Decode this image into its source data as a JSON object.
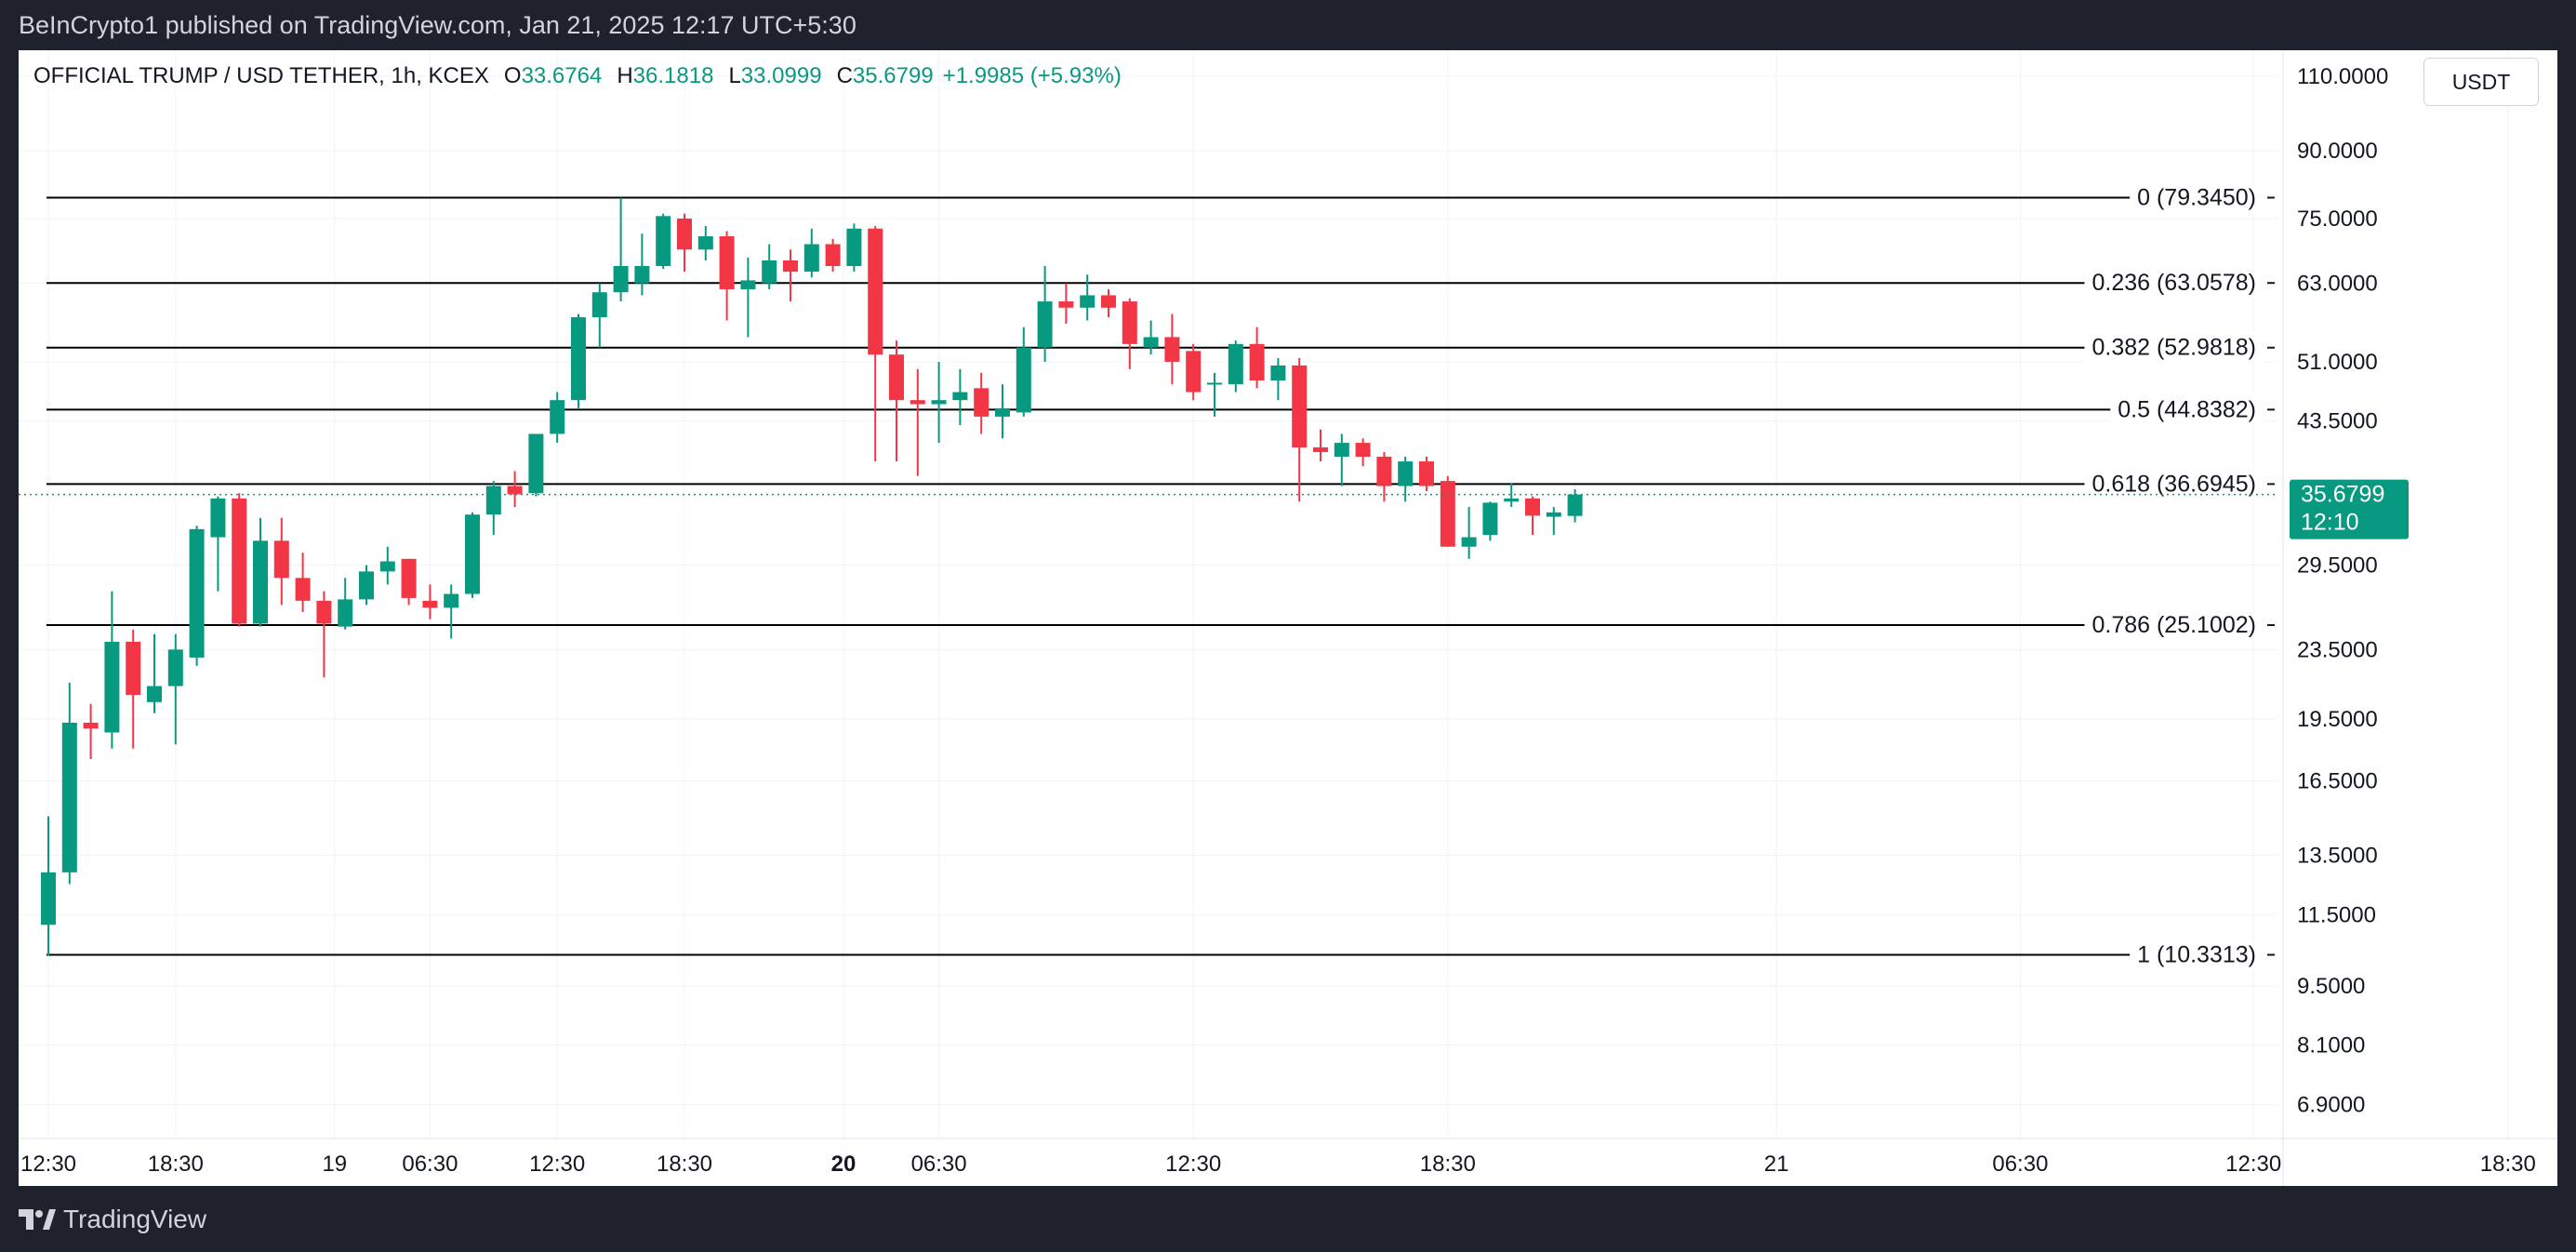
{
  "header": {
    "publish_text": "BeInCrypto1 published on TradingView.com, Jan 21, 2025 12:17 UTC+5:30"
  },
  "legend": {
    "symbol": "OFFICIAL TRUMP / USD TETHER, 1h, KCEX",
    "open_label": "O",
    "open": "33.6764",
    "high_label": "H",
    "high": "36.1818",
    "low_label": "L",
    "low": "33.0999",
    "close_label": "C",
    "close": "35.6799",
    "change": "+1.9985 (+5.93%)"
  },
  "currency_button": "USDT",
  "footer": {
    "brand": "TradingView"
  },
  "colors": {
    "up": "#089981",
    "down": "#f23645",
    "background": "#ffffff",
    "grid": "#f0f3fa",
    "fib_line": "#000000"
  },
  "chart_data": {
    "type": "candlestick",
    "timeframe": "1h",
    "yscale": "log",
    "ylim": [
      6.3,
      118
    ],
    "y_ticks": [
      6.9,
      8.1,
      9.5,
      11.5,
      13.5,
      16.5,
      19.5,
      23.5,
      29.5,
      43.5,
      51,
      63,
      75,
      90,
      110
    ],
    "y_tick_labels": [
      "6.9000",
      "8.1000",
      "9.5000",
      "11.5000",
      "13.5000",
      "16.5000",
      "19.5000",
      "23.5000",
      "29.5000",
      "43.5000",
      "51.0000",
      "63.0000",
      "75.0000",
      "90.0000",
      "110.0000"
    ],
    "x_ticks": [
      {
        "label": "12:30",
        "bar": 0,
        "bold": false
      },
      {
        "label": "18:30",
        "bar": 6,
        "bold": false
      },
      {
        "label": "19",
        "bar": 13.5,
        "bold": false
      },
      {
        "label": "06:30",
        "bar": 18,
        "bold": false
      },
      {
        "label": "12:30",
        "bar": 24,
        "bold": false
      },
      {
        "label": "18:30",
        "bar": 30,
        "bold": false
      },
      {
        "label": "20",
        "bar": 37.5,
        "bold": true
      },
      {
        "label": "06:30",
        "bar": 42,
        "bold": false
      },
      {
        "label": "12:30",
        "bar": 54,
        "bold": false
      },
      {
        "label": "18:30",
        "bar": 66,
        "bold": false
      },
      {
        "label": "21",
        "bar": 81.5,
        "bold": false
      },
      {
        "label": "06:30",
        "bar": 93,
        "bold": false
      },
      {
        "label": "12:30",
        "bar": 104,
        "bold": false
      },
      {
        "label": "18:30",
        "bar": 116,
        "bold": false
      }
    ],
    "candles": [
      {
        "bar": 0,
        "o": 11.2,
        "h": 15.0,
        "l": 10.3,
        "c": 12.9
      },
      {
        "bar": 1,
        "o": 12.9,
        "h": 21.5,
        "l": 12.5,
        "c": 19.3
      },
      {
        "bar": 2,
        "o": 19.3,
        "h": 20.3,
        "l": 17.5,
        "c": 19.0
      },
      {
        "bar": 3,
        "o": 18.8,
        "h": 27.5,
        "l": 18.0,
        "c": 24.0
      },
      {
        "bar": 4,
        "o": 24.0,
        "h": 24.8,
        "l": 18.0,
        "c": 20.8
      },
      {
        "bar": 5,
        "o": 20.4,
        "h": 24.5,
        "l": 19.8,
        "c": 21.3
      },
      {
        "bar": 6,
        "o": 21.3,
        "h": 24.5,
        "l": 18.2,
        "c": 23.5
      },
      {
        "bar": 7,
        "o": 23.0,
        "h": 32.8,
        "l": 22.5,
        "c": 32.5
      },
      {
        "bar": 8,
        "o": 31.8,
        "h": 35.5,
        "l": 27.5,
        "c": 35.3
      },
      {
        "bar": 9,
        "o": 35.3,
        "h": 35.8,
        "l": 25.0,
        "c": 25.2
      },
      {
        "bar": 10,
        "o": 25.2,
        "h": 33.5,
        "l": 25.0,
        "c": 31.5
      },
      {
        "bar": 11,
        "o": 31.5,
        "h": 33.5,
        "l": 26.5,
        "c": 28.5
      },
      {
        "bar": 12,
        "o": 28.5,
        "h": 30.5,
        "l": 26.0,
        "c": 26.8
      },
      {
        "bar": 13,
        "o": 26.8,
        "h": 27.5,
        "l": 21.8,
        "c": 25.2
      },
      {
        "bar": 14,
        "o": 25.0,
        "h": 28.5,
        "l": 24.8,
        "c": 26.9
      },
      {
        "bar": 15,
        "o": 26.9,
        "h": 29.5,
        "l": 26.5,
        "c": 29.0
      },
      {
        "bar": 16,
        "o": 29.0,
        "h": 31.0,
        "l": 28.0,
        "c": 29.8
      },
      {
        "bar": 17,
        "o": 30.0,
        "h": 30.0,
        "l": 26.5,
        "c": 27.0
      },
      {
        "bar": 18,
        "o": 26.8,
        "h": 28.0,
        "l": 25.5,
        "c": 26.3
      },
      {
        "bar": 19,
        "o": 26.3,
        "h": 28.0,
        "l": 24.2,
        "c": 27.3
      },
      {
        "bar": 20,
        "o": 27.3,
        "h": 34.0,
        "l": 27.0,
        "c": 33.8
      },
      {
        "bar": 21,
        "o": 33.8,
        "h": 37.0,
        "l": 32.0,
        "c": 36.5
      },
      {
        "bar": 22,
        "o": 36.5,
        "h": 38.0,
        "l": 34.5,
        "c": 35.7
      },
      {
        "bar": 23,
        "o": 35.8,
        "h": 42.0,
        "l": 35.5,
        "c": 42.0
      },
      {
        "bar": 24,
        "o": 42.0,
        "h": 47.0,
        "l": 41.0,
        "c": 46.0
      },
      {
        "bar": 25,
        "o": 46.0,
        "h": 58.0,
        "l": 45.0,
        "c": 57.5
      },
      {
        "bar": 26,
        "o": 57.5,
        "h": 63.0,
        "l": 53.0,
        "c": 61.5
      },
      {
        "bar": 27,
        "o": 61.5,
        "h": 79.3,
        "l": 60.0,
        "c": 66.0
      },
      {
        "bar": 28,
        "o": 63.0,
        "h": 72.0,
        "l": 61.0,
        "c": 66.0
      },
      {
        "bar": 29,
        "o": 66.0,
        "h": 76.0,
        "l": 65.5,
        "c": 75.5
      },
      {
        "bar": 30,
        "o": 75.0,
        "h": 76.0,
        "l": 65.0,
        "c": 69.0
      },
      {
        "bar": 31,
        "o": 69.0,
        "h": 73.5,
        "l": 67.0,
        "c": 71.5
      },
      {
        "bar": 32,
        "o": 71.5,
        "h": 72.5,
        "l": 57.0,
        "c": 62.0
      },
      {
        "bar": 33,
        "o": 62.0,
        "h": 67.5,
        "l": 54.5,
        "c": 63.5
      },
      {
        "bar": 34,
        "o": 63.0,
        "h": 70.0,
        "l": 62.0,
        "c": 67.0
      },
      {
        "bar": 35,
        "o": 67.0,
        "h": 69.0,
        "l": 60.0,
        "c": 65.0
      },
      {
        "bar": 36,
        "o": 65.0,
        "h": 73.0,
        "l": 64.0,
        "c": 70.0
      },
      {
        "bar": 37,
        "o": 70.0,
        "h": 71.0,
        "l": 65.0,
        "c": 66.0
      },
      {
        "bar": 38,
        "o": 66.0,
        "h": 74.0,
        "l": 65.0,
        "c": 73.0
      },
      {
        "bar": 39,
        "o": 73.0,
        "h": 73.5,
        "l": 39.0,
        "c": 52.0
      },
      {
        "bar": 40,
        "o": 52.0,
        "h": 54.0,
        "l": 39.0,
        "c": 46.0
      },
      {
        "bar": 41,
        "o": 46.0,
        "h": 50.0,
        "l": 37.5,
        "c": 45.5
      },
      {
        "bar": 42,
        "o": 45.5,
        "h": 51.0,
        "l": 41.0,
        "c": 46.0
      },
      {
        "bar": 43,
        "o": 46.0,
        "h": 50.0,
        "l": 43.0,
        "c": 47.0
      },
      {
        "bar": 44,
        "o": 47.5,
        "h": 49.5,
        "l": 42.0,
        "c": 44.0
      },
      {
        "bar": 45,
        "o": 44.0,
        "h": 48.0,
        "l": 41.5,
        "c": 45.0
      },
      {
        "bar": 46,
        "o": 44.5,
        "h": 56.0,
        "l": 44.0,
        "c": 53.0
      },
      {
        "bar": 47,
        "o": 53.0,
        "h": 66.0,
        "l": 51.0,
        "c": 60.0
      },
      {
        "bar": 48,
        "o": 60.0,
        "h": 63.0,
        "l": 56.5,
        "c": 59.0
      },
      {
        "bar": 49,
        "o": 59.0,
        "h": 64.5,
        "l": 57.0,
        "c": 61.0
      },
      {
        "bar": 50,
        "o": 61.0,
        "h": 62.0,
        "l": 57.5,
        "c": 59.0
      },
      {
        "bar": 51,
        "o": 60.0,
        "h": 60.5,
        "l": 50.0,
        "c": 53.5
      },
      {
        "bar": 52,
        "o": 53.0,
        "h": 57.0,
        "l": 52.0,
        "c": 54.5
      },
      {
        "bar": 53,
        "o": 54.5,
        "h": 58.0,
        "l": 48.0,
        "c": 51.0
      },
      {
        "bar": 54,
        "o": 52.5,
        "h": 53.5,
        "l": 46.0,
        "c": 47.0
      },
      {
        "bar": 55,
        "o": 48.0,
        "h": 49.5,
        "l": 44.0,
        "c": 48.2
      },
      {
        "bar": 56,
        "o": 48.0,
        "h": 54.0,
        "l": 47.0,
        "c": 53.5
      },
      {
        "bar": 57,
        "o": 53.5,
        "h": 56.0,
        "l": 47.5,
        "c": 48.5
      },
      {
        "bar": 58,
        "o": 48.5,
        "h": 51.5,
        "l": 46.0,
        "c": 50.5
      },
      {
        "bar": 59,
        "o": 50.5,
        "h": 51.5,
        "l": 35.0,
        "c": 40.5
      },
      {
        "bar": 60,
        "o": 40.5,
        "h": 42.5,
        "l": 39.0,
        "c": 40.0
      },
      {
        "bar": 61,
        "o": 39.5,
        "h": 42.0,
        "l": 36.5,
        "c": 41.0
      },
      {
        "bar": 62,
        "o": 41.0,
        "h": 41.5,
        "l": 38.5,
        "c": 39.5
      },
      {
        "bar": 63,
        "o": 39.5,
        "h": 40.0,
        "l": 35.0,
        "c": 36.5
      },
      {
        "bar": 64,
        "o": 36.5,
        "h": 39.5,
        "l": 35.0,
        "c": 39.0
      },
      {
        "bar": 65,
        "o": 39.0,
        "h": 39.5,
        "l": 36.0,
        "c": 36.5
      },
      {
        "bar": 66,
        "o": 37.0,
        "h": 37.5,
        "l": 31.0,
        "c": 31.0
      },
      {
        "bar": 67,
        "o": 31.0,
        "h": 34.5,
        "l": 30.0,
        "c": 31.8
      },
      {
        "bar": 68,
        "o": 32.0,
        "h": 35.0,
        "l": 31.5,
        "c": 34.9
      },
      {
        "bar": 69,
        "o": 35.0,
        "h": 36.8,
        "l": 34.5,
        "c": 35.3
      },
      {
        "bar": 70,
        "o": 35.3,
        "h": 35.5,
        "l": 32.0,
        "c": 33.7
      },
      {
        "bar": 71,
        "o": 33.6,
        "h": 34.5,
        "l": 32.0,
        "c": 34.0
      },
      {
        "bar": 72,
        "o": 33.6764,
        "h": 36.1818,
        "l": 33.0999,
        "c": 35.6799
      }
    ],
    "price_labels": {
      "current": "35.6799",
      "countdown": "12:10"
    },
    "fib_levels": [
      {
        "ratio": "0",
        "price": 79.345,
        "label": "0 (79.3450)"
      },
      {
        "ratio": "0.236",
        "price": 63.0578,
        "label": "0.236 (63.0578)"
      },
      {
        "ratio": "0.382",
        "price": 52.9818,
        "label": "0.382 (52.9818)"
      },
      {
        "ratio": "0.5",
        "price": 44.8382,
        "label": "0.5 (44.8382)"
      },
      {
        "ratio": "0.618",
        "price": 36.6945,
        "label": "0.618 (36.6945)"
      },
      {
        "ratio": "0.786",
        "price": 25.1002,
        "label": "0.786 (25.1002)"
      },
      {
        "ratio": "1",
        "price": 10.3313,
        "label": "1 (10.3313)"
      }
    ]
  }
}
